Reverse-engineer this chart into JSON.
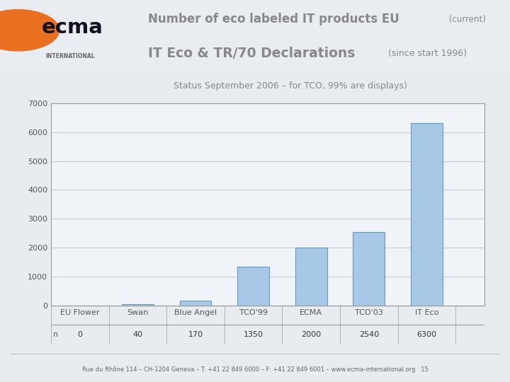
{
  "categories": [
    "EU Flower",
    "Swan",
    "Blue Angel",
    "TCO'99",
    "ECMA",
    "TCO'03",
    "IT Eco"
  ],
  "values": [
    0,
    40,
    170,
    1350,
    2000,
    2540,
    6300
  ],
  "table_values": [
    "0",
    "40",
    "170",
    "1350",
    "2000",
    "2540",
    "6300"
  ],
  "bar_color": "#a8c8e8",
  "bar_edge_color": "#6699bb",
  "title_line1": "Number of eco labeled IT products EU",
  "title_line1_suffix": " (current)",
  "title_line2": "IT Eco & TR/70 Declarations",
  "title_line2_suffix": " (since start 1996)",
  "subtitle": "Status September 2006 – for TCO, 99% are displays)",
  "ylim": [
    0,
    7000
  ],
  "yticks": [
    0,
    1000,
    2000,
    3000,
    4000,
    5000,
    6000,
    7000
  ],
  "bg_header_color": "#d0d8e0",
  "bg_chart_color": "#f0f4f8",
  "footer_text": "Rue du Rhône 114 – CH-1204 Geneva – T: +41 22 849 6000 – F: +41 22 849 6001 – www.ecma-international.org   15",
  "table_row_label": "n",
  "title_color": "#888888",
  "grid_color": "#cccccc",
  "axis_color": "#555555",
  "orange_color": "#e87020",
  "logo_text": "ecma",
  "logo_sub": "INTERNATIONAL"
}
